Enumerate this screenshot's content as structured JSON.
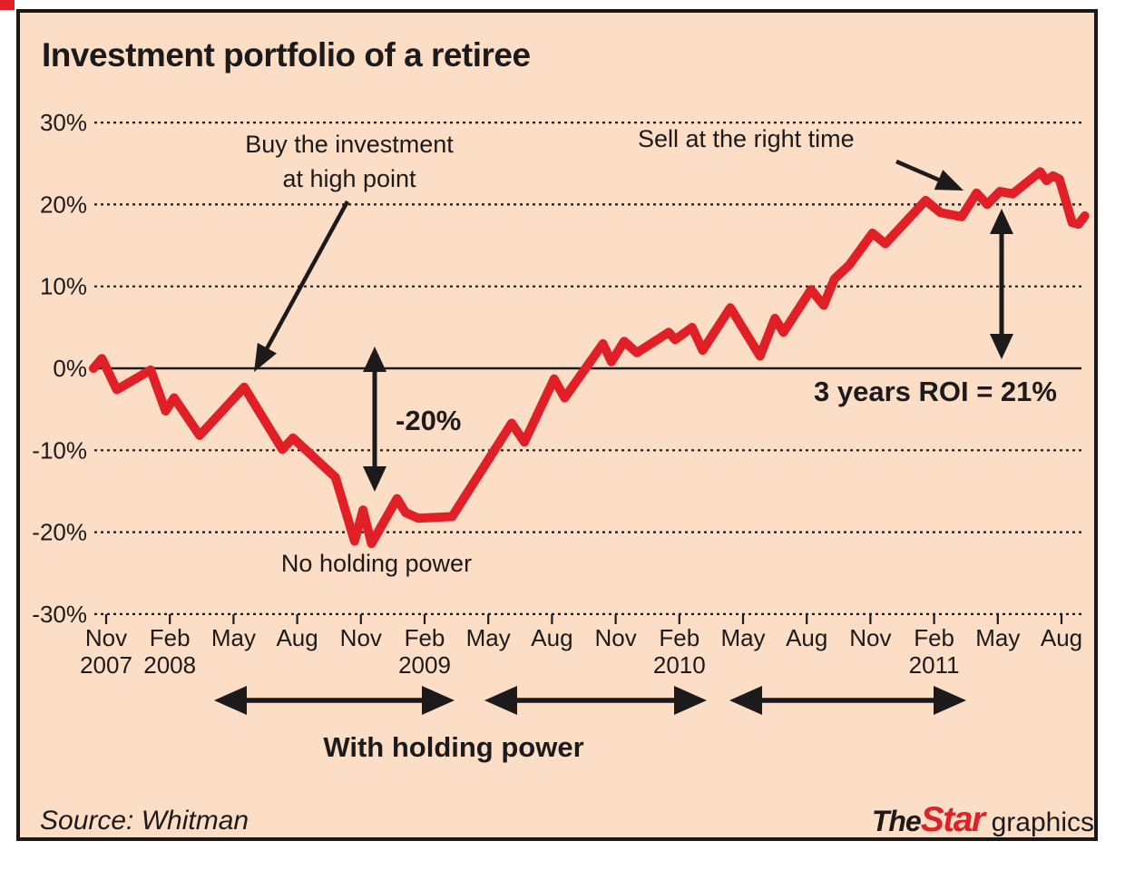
{
  "chart_data": {
    "type": "line",
    "title": "Investment portfolio of a retiree",
    "x_unit": "months since Nov 2007 (ticks every 3 months)",
    "y_unit": "percent return",
    "ylim": [
      -30,
      30
    ],
    "grid": "dotted horizontal lines, solid zero line",
    "y_ticks": [
      {
        "v": 30,
        "label": "30%"
      },
      {
        "v": 20,
        "label": "20%"
      },
      {
        "v": 10,
        "label": "10%"
      },
      {
        "v": 0,
        "label": "0%"
      },
      {
        "v": -10,
        "label": "-10%"
      },
      {
        "v": -20,
        "label": "-20%"
      },
      {
        "v": -30,
        "label": "-30%"
      }
    ],
    "x_ticks": [
      {
        "m": 0,
        "month": "Nov",
        "year": "2007"
      },
      {
        "m": 3,
        "month": "Feb",
        "year": "2008"
      },
      {
        "m": 6,
        "month": "May"
      },
      {
        "m": 9,
        "month": "Aug"
      },
      {
        "m": 12,
        "month": "Nov"
      },
      {
        "m": 15,
        "month": "Feb",
        "year": "2009"
      },
      {
        "m": 18,
        "month": "May"
      },
      {
        "m": 21,
        "month": "Aug"
      },
      {
        "m": 24,
        "month": "Nov"
      },
      {
        "m": 27,
        "month": "Feb",
        "year": "2010"
      },
      {
        "m": 30,
        "month": "May"
      },
      {
        "m": 33,
        "month": "Aug"
      },
      {
        "m": 36,
        "month": "Nov"
      },
      {
        "m": 39,
        "month": "Feb",
        "year": "2011"
      },
      {
        "m": 42,
        "month": "May"
      },
      {
        "m": 45,
        "month": "Aug"
      }
    ],
    "series": [
      {
        "name": "Portfolio return (%)",
        "color": "#e11f26",
        "points": [
          [
            -0.6,
            0
          ],
          [
            -0.2,
            1.2
          ],
          [
            0.5,
            -2.6
          ],
          [
            2.1,
            -0.2
          ],
          [
            2.8,
            -5.2
          ],
          [
            3.2,
            -3.6
          ],
          [
            4.4,
            -8.2
          ],
          [
            6.5,
            -2.3
          ],
          [
            8.3,
            -9.9
          ],
          [
            8.8,
            -8.5
          ],
          [
            10.8,
            -13.3
          ],
          [
            11.7,
            -21.1
          ],
          [
            12.1,
            -17.3
          ],
          [
            12.5,
            -21.4
          ],
          [
            13.7,
            -15.9
          ],
          [
            14.1,
            -17.6
          ],
          [
            14.7,
            -18.3
          ],
          [
            16.3,
            -18.1
          ],
          [
            19.1,
            -6.7
          ],
          [
            19.7,
            -9.0
          ],
          [
            21.1,
            -1.3
          ],
          [
            21.6,
            -3.6
          ],
          [
            23.4,
            3.0
          ],
          [
            23.8,
            0.8
          ],
          [
            24.4,
            3.3
          ],
          [
            25.0,
            1.9
          ],
          [
            26.5,
            4.4
          ],
          [
            26.8,
            3.5
          ],
          [
            27.6,
            5.0
          ],
          [
            28.1,
            2.2
          ],
          [
            29.4,
            7.4
          ],
          [
            30.8,
            1.5
          ],
          [
            31.5,
            6.1
          ],
          [
            31.9,
            4.4
          ],
          [
            33.2,
            9.6
          ],
          [
            33.8,
            7.7
          ],
          [
            34.3,
            10.9
          ],
          [
            35.0,
            12.6
          ],
          [
            36.1,
            16.5
          ],
          [
            36.7,
            15.2
          ],
          [
            38.6,
            20.5
          ],
          [
            39.3,
            19.0
          ],
          [
            40.3,
            18.5
          ],
          [
            41.0,
            21.4
          ],
          [
            41.5,
            20.0
          ],
          [
            42.1,
            21.6
          ],
          [
            42.7,
            21.3
          ],
          [
            44.0,
            24.0
          ],
          [
            44.3,
            22.9
          ],
          [
            44.6,
            23.5
          ],
          [
            44.9,
            23.1
          ],
          [
            45.5,
            17.8
          ],
          [
            45.8,
            17.6
          ],
          [
            46.1,
            18.6
          ]
        ]
      }
    ],
    "annotations": {
      "buy": "Buy the investment\nat high point",
      "drop": "-20%",
      "no_holding": "No holding power",
      "sell": "Sell at the right time",
      "roi": "3 years ROI = 21%",
      "holding": "With holding power"
    }
  },
  "footer": {
    "source": "Source: Whitman",
    "logo": {
      "the": "The",
      "star": "Star",
      "graphics": "graphics"
    }
  }
}
